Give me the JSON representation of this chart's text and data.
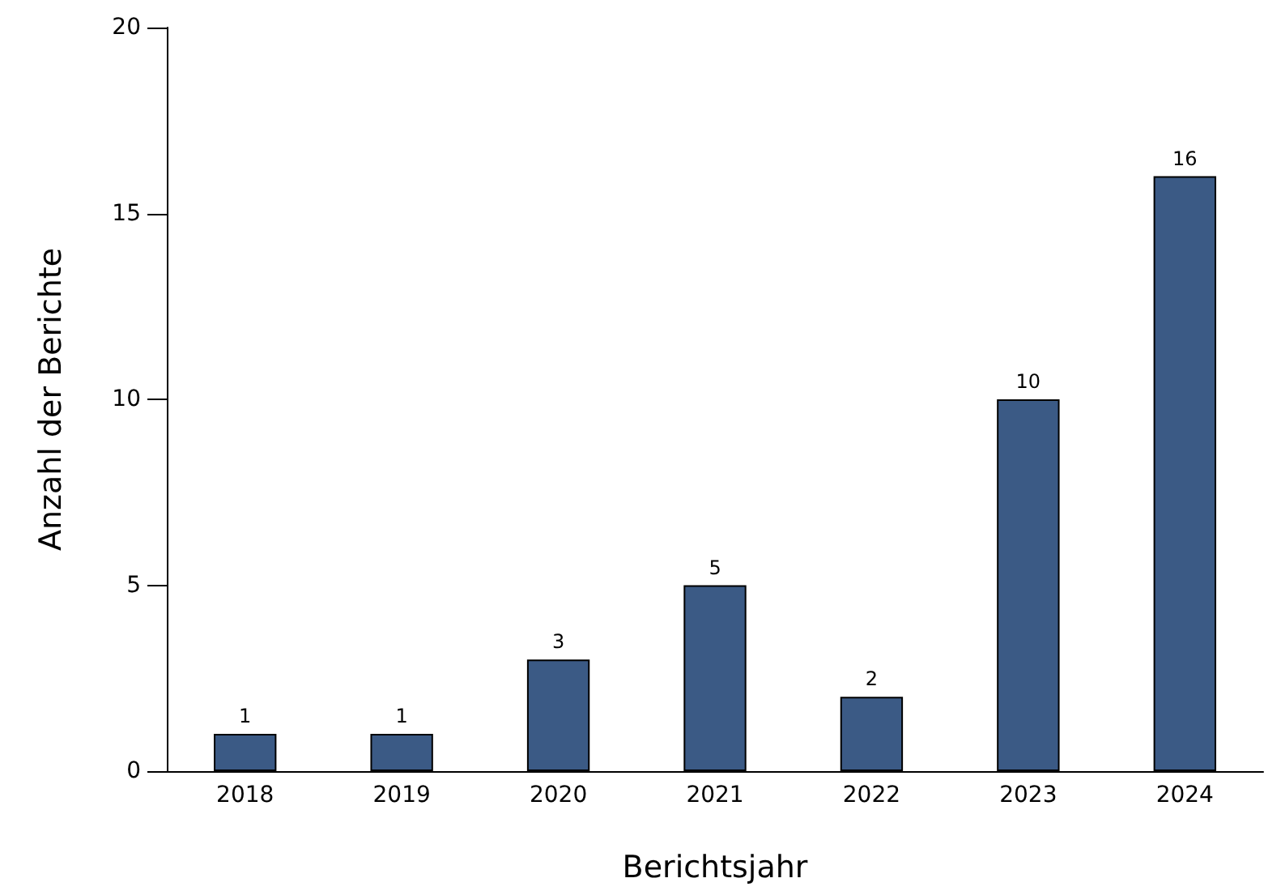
{
  "chart_data": {
    "type": "bar",
    "xlabel": "Berichtsjahr",
    "ylabel": "Anzahl der Berichte",
    "categories": [
      "2018",
      "2019",
      "2020",
      "2021",
      "2022",
      "2023",
      "2024"
    ],
    "values": [
      1,
      1,
      3,
      5,
      2,
      10,
      16
    ],
    "color": "#3b5a85",
    "ylim": [
      0,
      20
    ],
    "yticks": [
      0,
      5,
      10,
      15,
      20
    ],
    "grid": false,
    "data_labels": true
  }
}
